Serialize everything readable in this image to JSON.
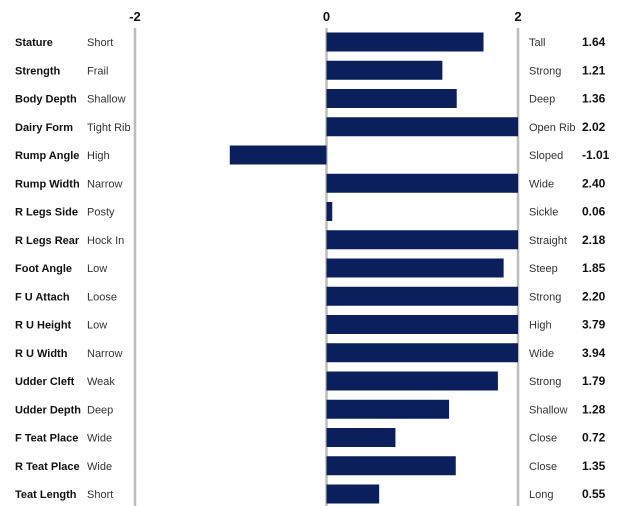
{
  "chart_data": {
    "type": "bar",
    "orientation": "horizontal",
    "xlim": [
      -2,
      2
    ],
    "ticks": [
      "-2",
      "0",
      "2"
    ],
    "bar_color": "#0b1f5c",
    "gridline_color": "#bdbdbd",
    "traits": [
      {
        "trait": "Stature",
        "low": "Short",
        "high": "Tall",
        "label": "1.64",
        "value": 1.64
      },
      {
        "trait": "Strength",
        "low": "Frail",
        "high": "Strong",
        "label": "1.21",
        "value": 1.21
      },
      {
        "trait": "Body Depth",
        "low": "Shallow",
        "high": "Deep",
        "label": "1.36",
        "value": 1.36
      },
      {
        "trait": "Dairy Form",
        "low": "Tight Rib",
        "high": "Open Rib",
        "label": "2.02",
        "value": 2.02
      },
      {
        "trait": "Rump Angle",
        "low": "High",
        "high": "Sloped",
        "label": "-1.01",
        "value": -1.01
      },
      {
        "trait": "Rump Width",
        "low": "Narrow",
        "high": "Wide",
        "label": "2.40",
        "value": 2.4
      },
      {
        "trait": "R Legs Side",
        "low": "Posty",
        "high": "Sickle",
        "label": "0.06",
        "value": 0.06
      },
      {
        "trait": "R Legs Rear",
        "low": "Hock In",
        "high": "Straight",
        "label": "2.18",
        "value": 2.18
      },
      {
        "trait": "Foot Angle",
        "low": "Low",
        "high": "Steep",
        "label": "1.85",
        "value": 1.85
      },
      {
        "trait": "F U Attach",
        "low": "Loose",
        "high": "Strong",
        "label": "2.20",
        "value": 2.2
      },
      {
        "trait": "R U Height",
        "low": "Low",
        "high": "High",
        "label": "3.79",
        "value": 3.79
      },
      {
        "trait": "R U Width",
        "low": "Narrow",
        "high": "Wide",
        "label": "3.94",
        "value": 3.94
      },
      {
        "trait": "Udder Cleft",
        "low": "Weak",
        "high": "Strong",
        "label": "1.79",
        "value": 1.79
      },
      {
        "trait": "Udder Depth",
        "low": "Deep",
        "high": "Shallow",
        "label": "1.28",
        "value": 1.28
      },
      {
        "trait": "F Teat Place",
        "low": "Wide",
        "high": "Close",
        "label": "0.72",
        "value": 0.72
      },
      {
        "trait": "R Teat Place",
        "low": "Wide",
        "high": "Close",
        "label": "1.35",
        "value": 1.35
      },
      {
        "trait": "Teat Length",
        "low": "Short",
        "high": "Long",
        "label": "0.55",
        "value": 0.55
      }
    ]
  }
}
